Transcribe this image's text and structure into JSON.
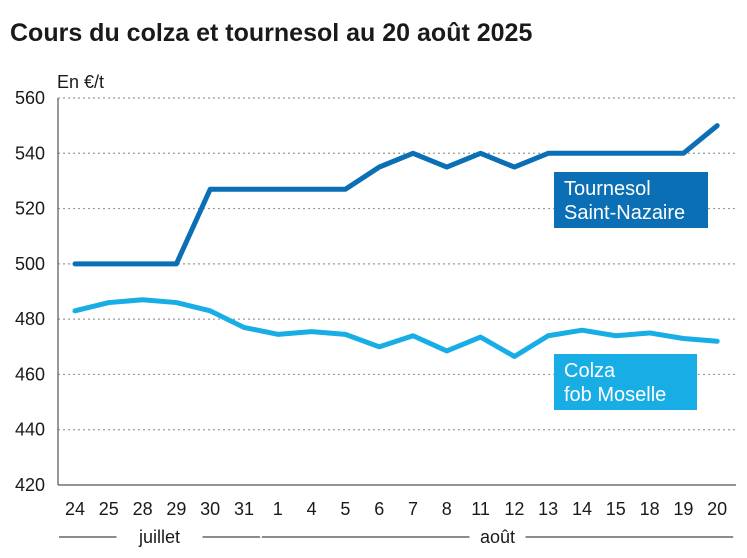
{
  "chart_data": {
    "type": "line",
    "title": "Cours du colza et tournesol au 20 août 2025",
    "ylabel": "En €/t",
    "ylim": [
      420,
      560
    ],
    "yticks": [
      420,
      440,
      460,
      480,
      500,
      520,
      540,
      560
    ],
    "grid": true,
    "categories": [
      "24",
      "25",
      "28",
      "29",
      "30",
      "31",
      "1",
      "4",
      "5",
      "6",
      "7",
      "8",
      "11",
      "12",
      "13",
      "14",
      "15",
      "18",
      "19",
      "20"
    ],
    "months": [
      {
        "label": "juillet",
        "from": 0,
        "to": 5
      },
      {
        "label": "août",
        "from": 6,
        "to": 19
      }
    ],
    "series": [
      {
        "name_lines": [
          "Tournesol",
          "Saint-Nazaire"
        ],
        "color": "#0a6fb4",
        "values": [
          500,
          500,
          500,
          500,
          527,
          527,
          527,
          527,
          527,
          535,
          540,
          535,
          540,
          535,
          540,
          540,
          540,
          540,
          540,
          550
        ]
      },
      {
        "name_lines": [
          "Colza",
          "fob Moselle"
        ],
        "color": "#19ade6",
        "values": [
          483,
          486,
          487,
          486,
          483,
          477,
          474.5,
          475.5,
          474.5,
          470,
          474,
          468.5,
          473.5,
          466.5,
          474,
          476,
          474,
          475,
          473,
          472
        ]
      }
    ]
  }
}
